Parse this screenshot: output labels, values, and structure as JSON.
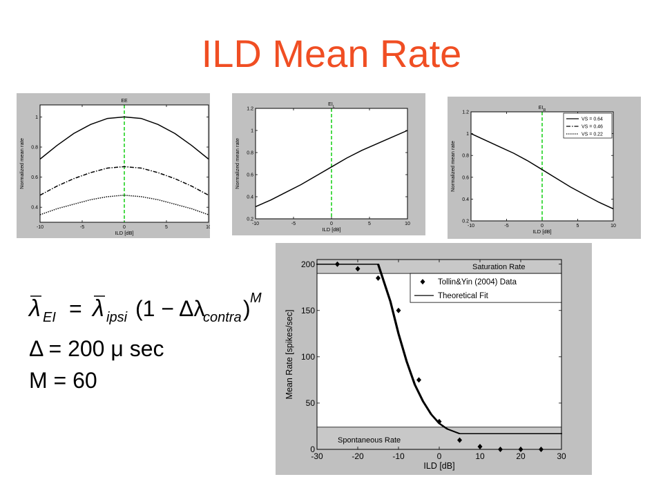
{
  "slide": {
    "title": "ILD Mean Rate"
  },
  "formulas": {
    "line1": {
      "lhs": "λ",
      "lhs_sub": "EI",
      "eq": "=",
      "rhs": "λ",
      "rhs_sub": "ipsi",
      "paren": "(1 − Δλ",
      "paren_sub": "contra",
      "close": ")",
      "exp": "M"
    },
    "line2": {
      "text": "Δ = 200 μ sec"
    },
    "line3": {
      "text": "M = 60"
    }
  },
  "chart_data": [
    {
      "type": "line",
      "title": "EE",
      "xlabel": "ILD [dB]",
      "ylabel": "Normalized mean rate",
      "xlim": [
        -10,
        10
      ],
      "ylim": [
        0.3,
        1.08
      ],
      "xticks": [
        -10,
        -5,
        0,
        5,
        10
      ],
      "yticks": [
        0.4,
        0.6,
        0.8,
        1
      ],
      "vline": 0,
      "series": [
        {
          "style": "solid",
          "x": [
            -10,
            -8,
            -6,
            -4,
            -2,
            0,
            2,
            4,
            6,
            8,
            10
          ],
          "y": [
            0.72,
            0.81,
            0.89,
            0.95,
            0.99,
            1.0,
            0.99,
            0.95,
            0.89,
            0.81,
            0.72
          ]
        },
        {
          "style": "dashdot",
          "x": [
            -10,
            -8,
            -6,
            -4,
            -2,
            0,
            2,
            4,
            6,
            8,
            10
          ],
          "y": [
            0.48,
            0.54,
            0.59,
            0.63,
            0.66,
            0.67,
            0.66,
            0.63,
            0.59,
            0.54,
            0.48
          ]
        },
        {
          "style": "dotted",
          "x": [
            -10,
            -8,
            -6,
            -4,
            -2,
            0,
            2,
            4,
            6,
            8,
            10
          ],
          "y": [
            0.35,
            0.39,
            0.42,
            0.45,
            0.47,
            0.48,
            0.47,
            0.45,
            0.42,
            0.39,
            0.35
          ]
        }
      ]
    },
    {
      "type": "line",
      "title": "EI",
      "title_sub": "L",
      "xlabel": "ILD [dB]",
      "ylabel": "Normalized mean rate",
      "xlim": [
        -10,
        10
      ],
      "ylim": [
        0.2,
        1.2
      ],
      "xticks": [
        -10,
        -5,
        0,
        5,
        10
      ],
      "yticks": [
        0.2,
        0.4,
        0.6,
        0.8,
        1,
        1.2
      ],
      "vline": 0,
      "series": [
        {
          "style": "solid",
          "x": [
            -10,
            -8,
            -6,
            -4,
            -2,
            0,
            2,
            4,
            6,
            8,
            10
          ],
          "y": [
            0.31,
            0.37,
            0.44,
            0.51,
            0.59,
            0.67,
            0.75,
            0.82,
            0.88,
            0.94,
            1.0
          ]
        }
      ]
    },
    {
      "type": "line",
      "title": "EI",
      "title_sub": "R",
      "xlabel": "ILD [dB]",
      "ylabel": "Normalized mean rate",
      "xlim": [
        -10,
        10
      ],
      "ylim": [
        0.2,
        1.2
      ],
      "xticks": [
        -10,
        -5,
        0,
        5,
        10
      ],
      "yticks": [
        0.2,
        0.4,
        0.6,
        0.8,
        1,
        1.2
      ],
      "vline": 0,
      "legend_position": "top-right",
      "legend": [
        {
          "label": "VS = 0.64",
          "style": "solid"
        },
        {
          "label": "VS = 0.46",
          "style": "dashdot"
        },
        {
          "label": "VS = 0.22",
          "style": "dotted"
        }
      ],
      "series": [
        {
          "style": "solid",
          "x": [
            -10,
            -8,
            -6,
            -4,
            -2,
            0,
            2,
            4,
            6,
            8,
            10
          ],
          "y": [
            1.0,
            0.94,
            0.88,
            0.82,
            0.75,
            0.67,
            0.59,
            0.51,
            0.44,
            0.37,
            0.31
          ]
        }
      ]
    },
    {
      "type": "scatter",
      "xlabel": "ILD [dB]",
      "ylabel": "Mean Rate [spikes/sec]",
      "xlim": [
        -30,
        30
      ],
      "ylim": [
        0,
        205
      ],
      "xticks": [
        -30,
        -20,
        -10,
        0,
        10,
        20,
        30
      ],
      "yticks": [
        0,
        50,
        100,
        150,
        200
      ],
      "bands": [
        {
          "label": "Saturation Rate",
          "y0": 190,
          "y1": 205
        },
        {
          "label": "Spontaneous Rate",
          "y0": 0,
          "y1": 24
        }
      ],
      "legend_position": "top-right",
      "legend": [
        {
          "label": "Tollin&Yin (2004) Data",
          "marker": "diamond"
        },
        {
          "label": "Theoretical Fit",
          "style": "solid"
        }
      ],
      "data_points": {
        "name": "Tollin&Yin (2004) Data",
        "x": [
          -25,
          -20,
          -15,
          -10,
          -5,
          0,
          5,
          10,
          15,
          20,
          25
        ],
        "y": [
          200,
          195,
          185,
          150,
          75,
          30,
          10,
          3,
          0,
          0,
          0
        ]
      },
      "fit": {
        "name": "Theoretical Fit",
        "x": [
          -30,
          -15,
          -12,
          -10,
          -8,
          -6,
          -4,
          -2,
          0,
          2,
          5,
          10,
          20,
          30
        ],
        "y": [
          200,
          200,
          160,
          125,
          95,
          70,
          52,
          38,
          28,
          22,
          17,
          17,
          17,
          17
        ]
      }
    }
  ]
}
